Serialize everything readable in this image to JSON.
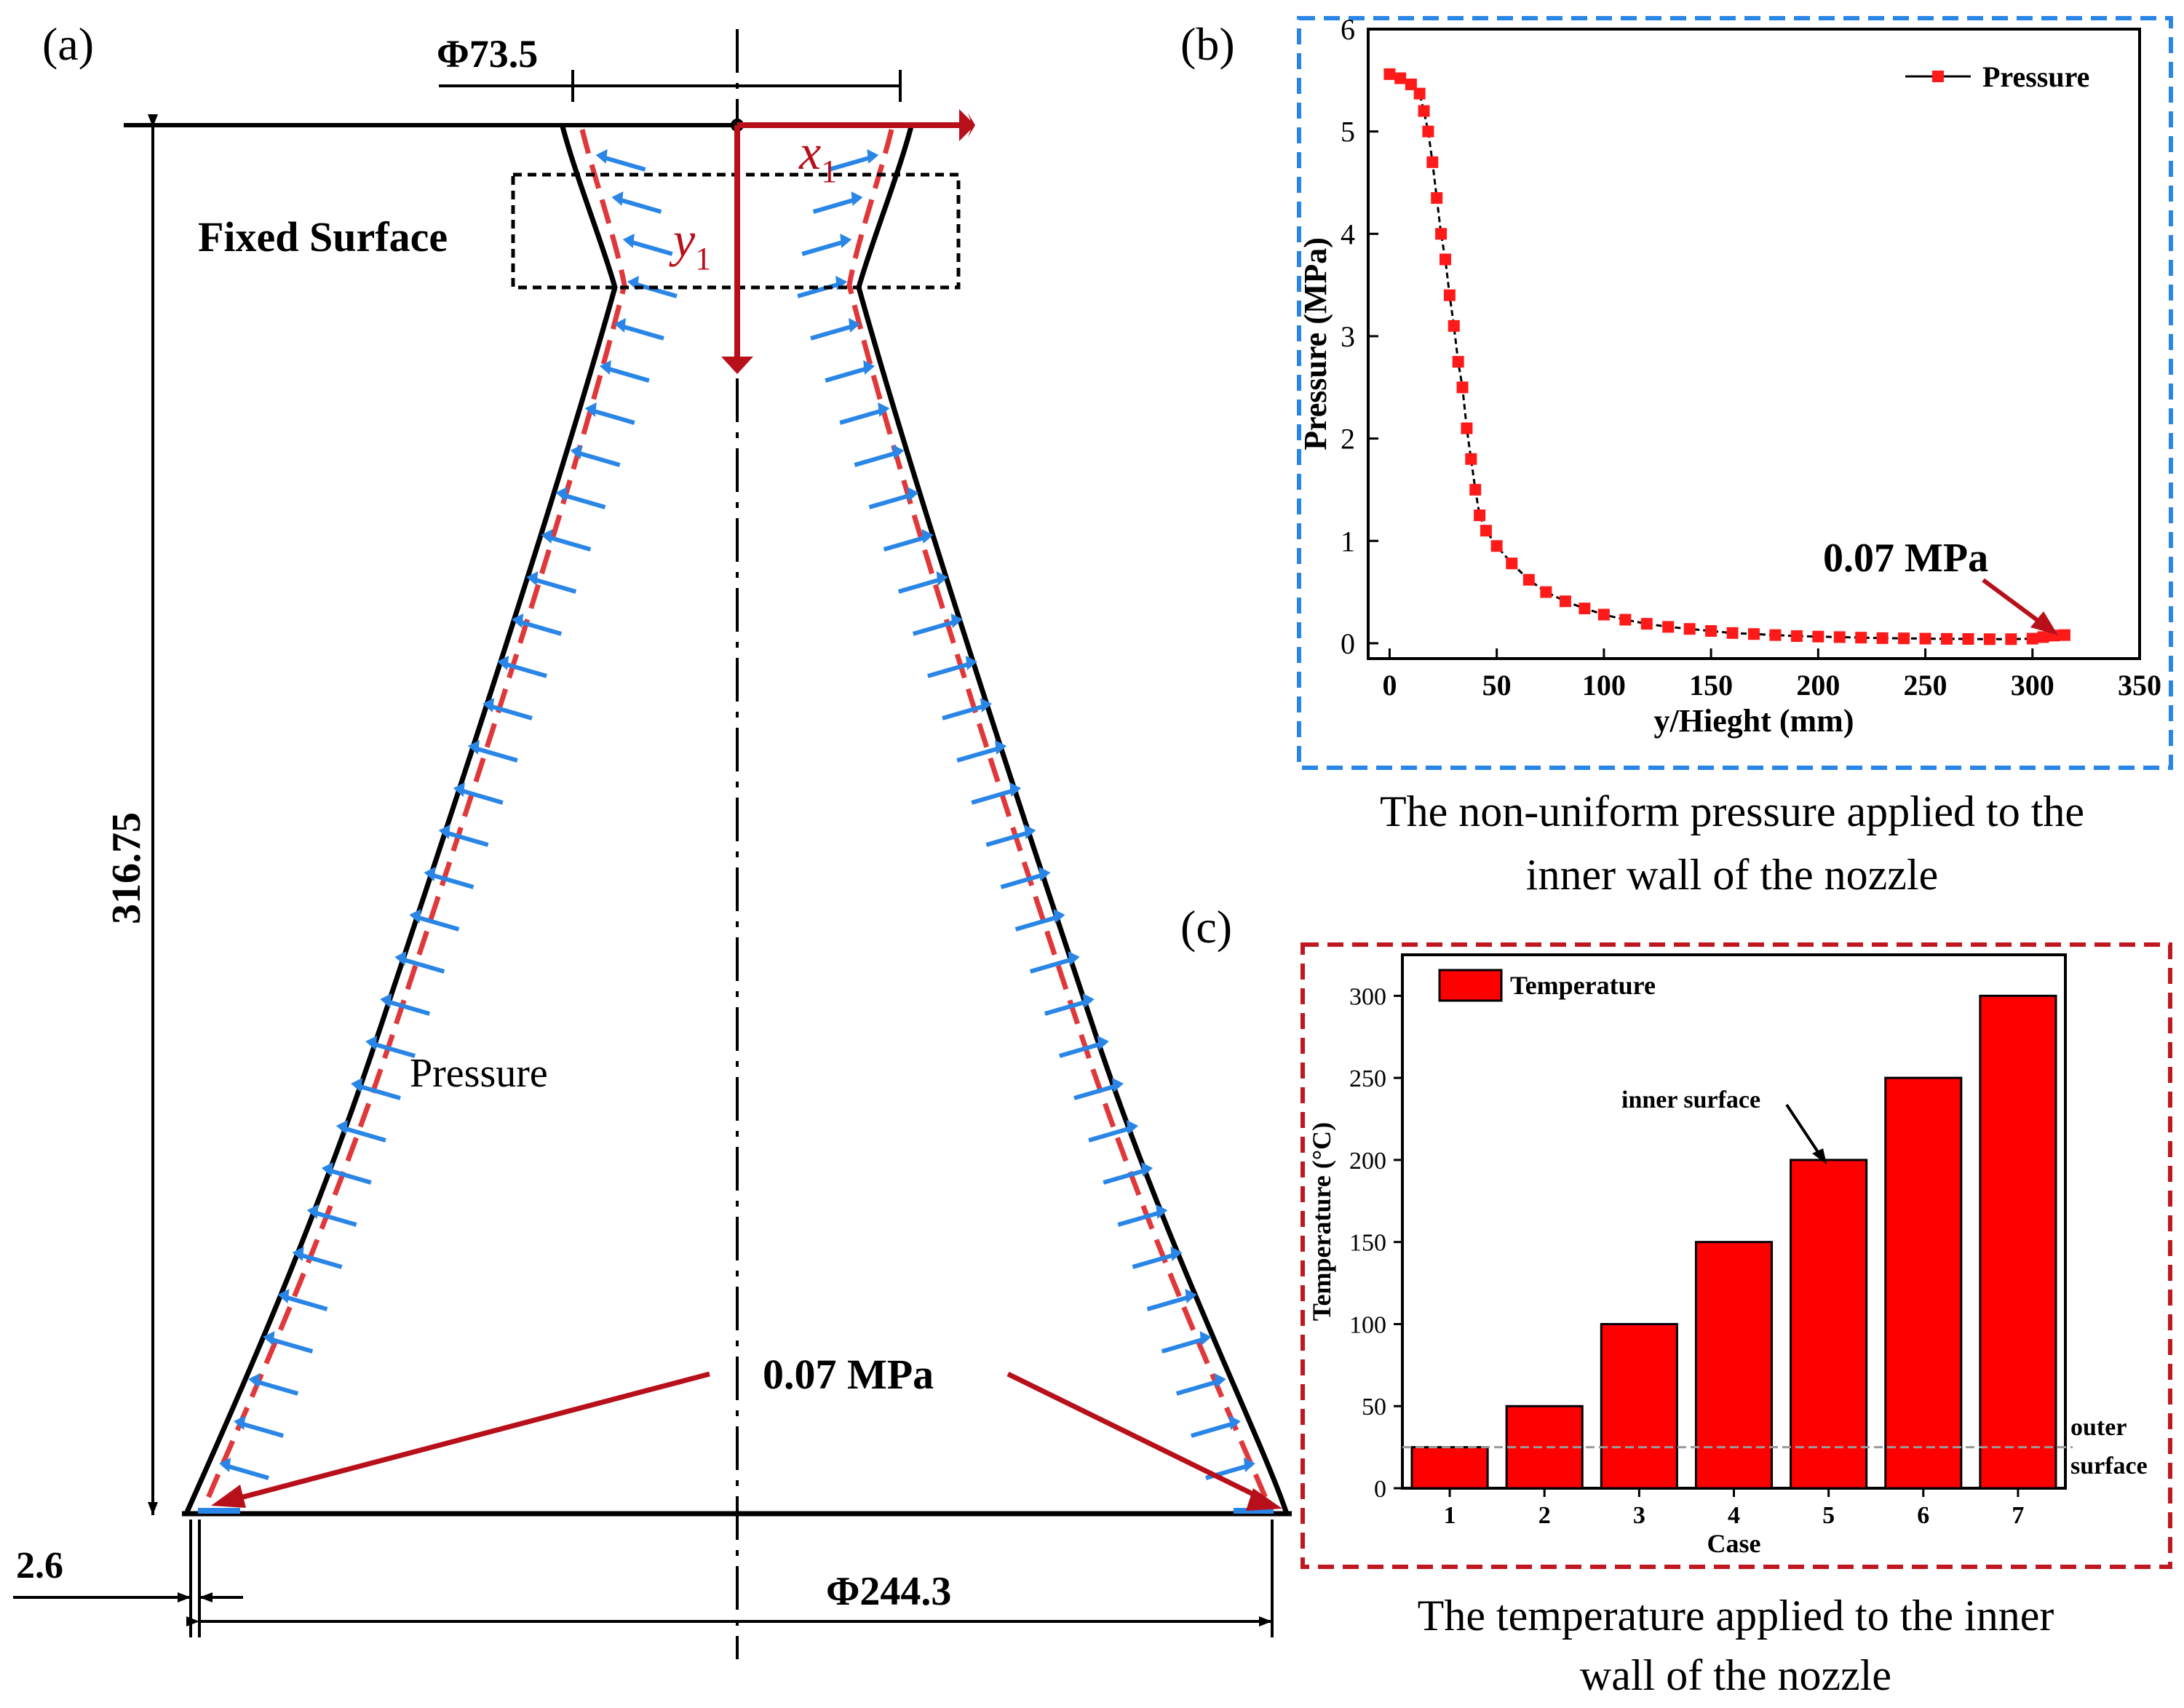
{
  "colors": {
    "ink": "#000000",
    "outline_dash": "#e0383a",
    "pressure_arrow": "#2a86e6",
    "dark_red": "#b8101a",
    "blue_frame": "#2a86e6",
    "red_frame": "#c01820",
    "bar_fill": "#ff0000",
    "marker": "#ff1a1a"
  },
  "panel_a": {
    "label": "(a)",
    "dim_top_diameter": "Φ73.5",
    "dim_height": "316.75",
    "dim_bottom_diameter": "Φ244.3",
    "dim_wall_thickness": "2.6",
    "fixed_surface_label": "Fixed Surface",
    "axis_x": "x",
    "axis_x_sub": "1",
    "axis_y": "y",
    "axis_y_sub": "1",
    "pressure_label": "Pressure",
    "outlet_pressure_label": "0.07 MPa"
  },
  "panel_b": {
    "label": "(b)",
    "caption_line1": "The non-uniform pressure applied to the",
    "caption_line2": "inner wall of the nozzle",
    "annotation": "0.07 MPa"
  },
  "panel_c": {
    "label": "(c)",
    "caption_line1": "The temperature applied to the inner",
    "caption_line2": "wall of the nozzle",
    "inner_annotation": "inner surface",
    "outer_annotation_line1": "outer",
    "outer_annotation_line2": "surface"
  },
  "chart_data": [
    {
      "id": "pressure-profile",
      "type": "line",
      "title": "",
      "xlabel": "y/Hieght (mm)",
      "ylabel": "Pressure (MPa)",
      "xlim": [
        -10,
        350
      ],
      "ylim": [
        -0.15,
        6
      ],
      "xticks": [
        0,
        50,
        100,
        150,
        200,
        250,
        300,
        350
      ],
      "yticks": [
        0,
        1,
        2,
        3,
        4,
        5,
        6
      ],
      "legend_position": "top-right",
      "series": [
        {
          "name": "Pressure",
          "x": [
            0,
            5,
            10,
            14,
            16,
            18,
            20,
            22,
            24,
            26,
            28,
            30,
            32,
            34,
            36,
            38,
            40,
            42,
            45,
            50,
            57,
            65,
            73,
            82,
            91,
            100,
            110,
            120,
            130,
            140,
            150,
            160,
            170,
            180,
            190,
            200,
            210,
            220,
            230,
            240,
            250,
            260,
            270,
            280,
            290,
            300,
            305,
            310,
            315
          ],
          "y": [
            5.56,
            5.52,
            5.46,
            5.37,
            5.2,
            5.0,
            4.7,
            4.35,
            4.0,
            3.75,
            3.4,
            3.1,
            2.75,
            2.5,
            2.1,
            1.8,
            1.5,
            1.25,
            1.1,
            0.95,
            0.78,
            0.62,
            0.5,
            0.41,
            0.34,
            0.28,
            0.23,
            0.19,
            0.16,
            0.14,
            0.12,
            0.1,
            0.09,
            0.08,
            0.07,
            0.065,
            0.06,
            0.055,
            0.05,
            0.048,
            0.045,
            0.043,
            0.042,
            0.04,
            0.04,
            0.045,
            0.06,
            0.075,
            0.08
          ]
        }
      ]
    },
    {
      "id": "temperature-cases",
      "type": "bar",
      "title": "",
      "xlabel": "Case",
      "ylabel": "Temperature (°C)",
      "categories": [
        "1",
        "2",
        "3",
        "4",
        "5",
        "6",
        "7"
      ],
      "values": [
        25,
        50,
        100,
        150,
        200,
        250,
        300
      ],
      "ylim": [
        0,
        325
      ],
      "yticks": [
        0,
        50,
        100,
        150,
        200,
        250,
        300
      ],
      "legend": [
        "Temperature"
      ],
      "legend_position": "top-left",
      "reference_line": {
        "value": 25,
        "label": "outer surface"
      }
    }
  ]
}
